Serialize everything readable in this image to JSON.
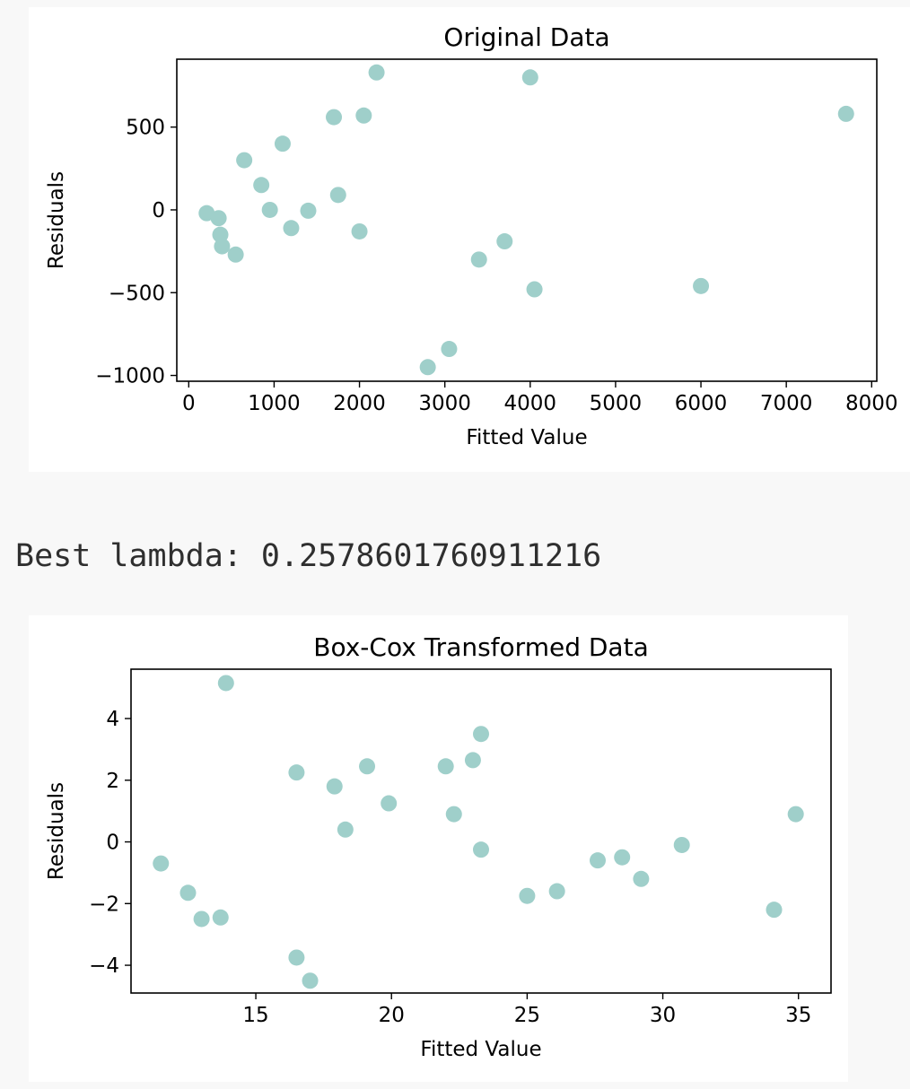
{
  "output_text": "Best lambda: 0.2578601760911216",
  "colors": {
    "marker": "#9fcfca",
    "axis": "#000000",
    "page_background": "#f8f8f8",
    "figure_background": "#ffffff"
  },
  "chart_data": [
    {
      "type": "scatter",
      "title": "Original Data",
      "xlabel": "Fitted Value",
      "ylabel": "Residuals",
      "xlim": [
        -140,
        8060
      ],
      "ylim": [
        -1035,
        910
      ],
      "xticks": [
        0,
        1000,
        2000,
        3000,
        4000,
        5000,
        6000,
        7000,
        8000
      ],
      "xtick_labels": [
        "0",
        "1000",
        "2000",
        "3000",
        "4000",
        "5000",
        "6000",
        "7000",
        "8000"
      ],
      "yticks": [
        -1000,
        -500,
        0,
        500
      ],
      "ytick_labels": [
        "−1000",
        "−500",
        "0",
        "500"
      ],
      "grid": false,
      "x": [
        210,
        350,
        370,
        390,
        550,
        650,
        850,
        950,
        1100,
        1200,
        1400,
        1700,
        1750,
        2000,
        2050,
        2200,
        2800,
        3050,
        3400,
        3700,
        4000,
        4050,
        6000,
        7700
      ],
      "y": [
        -20,
        -50,
        -150,
        -220,
        -270,
        300,
        150,
        0,
        400,
        -110,
        -5,
        560,
        90,
        -130,
        570,
        830,
        -950,
        -840,
        -300,
        -190,
        800,
        -480,
        -460,
        580
      ]
    },
    {
      "type": "scatter",
      "title": "Box-Cox Transformed Data",
      "xlabel": "Fitted Value",
      "ylabel": "Residuals",
      "xlim": [
        10.4,
        36.2
      ],
      "ylim": [
        -4.9,
        5.6
      ],
      "xticks": [
        15,
        20,
        25,
        30,
        35
      ],
      "xtick_labels": [
        "15",
        "20",
        "25",
        "30",
        "35"
      ],
      "yticks": [
        -4,
        -2,
        0,
        2,
        4
      ],
      "ytick_labels": [
        "−4",
        "−2",
        "0",
        "2",
        "4"
      ],
      "grid": false,
      "x": [
        11.5,
        12.5,
        13.0,
        13.7,
        13.9,
        16.5,
        16.5,
        17.0,
        17.9,
        18.3,
        19.1,
        19.9,
        22.0,
        22.3,
        23.0,
        23.3,
        23.3,
        25.0,
        26.1,
        27.6,
        28.5,
        29.2,
        30.7,
        34.1,
        34.9
      ],
      "y": [
        -0.7,
        -1.65,
        -2.5,
        -2.45,
        5.15,
        -3.75,
        2.25,
        -4.5,
        1.8,
        0.4,
        2.45,
        1.25,
        2.45,
        0.9,
        2.65,
        3.5,
        -0.25,
        -1.75,
        -1.6,
        -0.6,
        -0.5,
        -1.2,
        -0.1,
        -2.2,
        0.9
      ]
    }
  ]
}
